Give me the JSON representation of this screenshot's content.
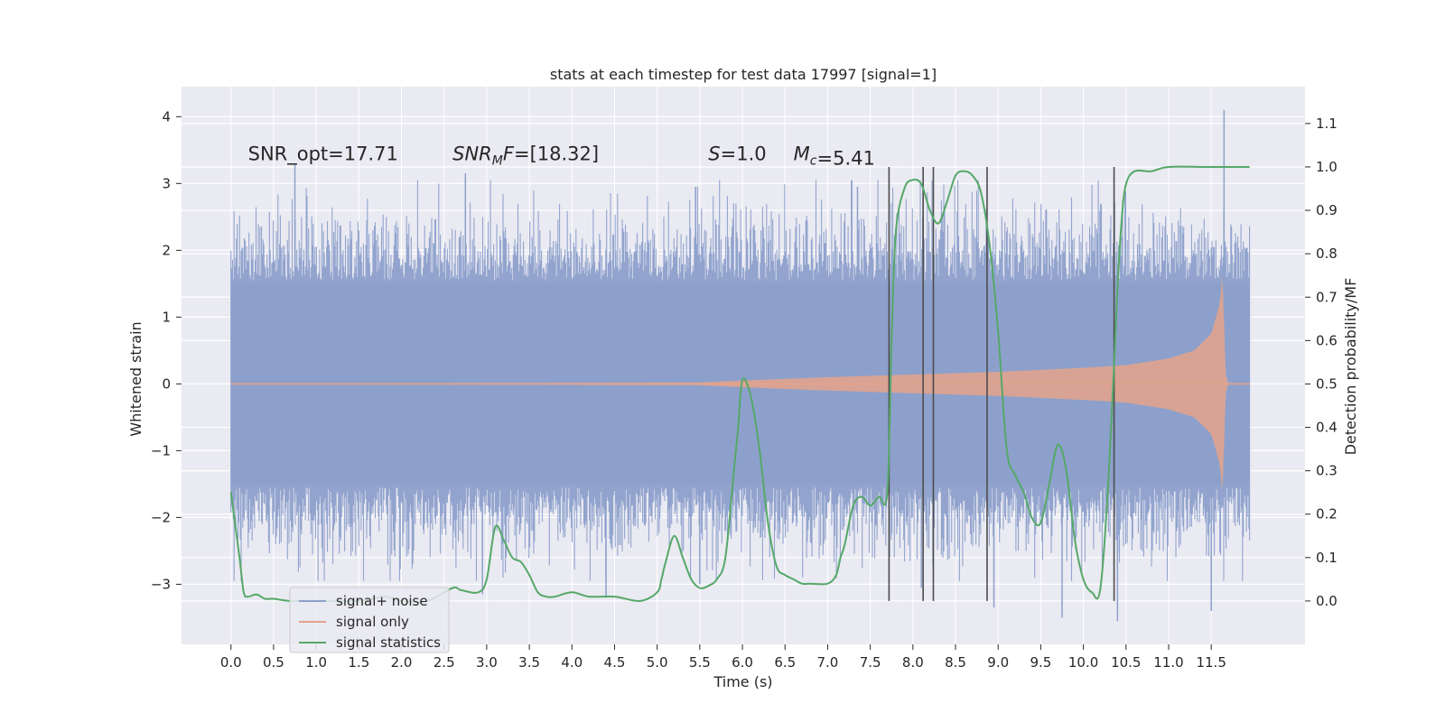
{
  "chart_data": {
    "type": "line",
    "title": "stats at each timestep for test data 17997 [signal=1]",
    "xlabel": "Time (s)",
    "ylabel_left": "Whitened strain",
    "ylabel_right": "Detection probability/MF",
    "xlim": [
      -0.58,
      12.6
    ],
    "ylim_left": [
      -3.9,
      4.45
    ],
    "ylim_right": [
      -0.1,
      1.185
    ],
    "x_ticks": [
      "0.0",
      "0.5",
      "1.0",
      "1.5",
      "2.0",
      "2.5",
      "3.0",
      "3.5",
      "4.0",
      "4.5",
      "5.0",
      "5.5",
      "6.0",
      "6.5",
      "7.0",
      "7.5",
      "8.0",
      "8.5",
      "9.0",
      "9.5",
      "10.0",
      "10.5",
      "11.0",
      "11.5"
    ],
    "y_ticks_left": [
      "4",
      "3",
      "2",
      "1",
      "0",
      "−1",
      "−2",
      "−3"
    ],
    "y_ticks_right": [
      "1.1",
      "1.0",
      "0.9",
      "0.8",
      "0.7",
      "0.6",
      "0.5",
      "0.4",
      "0.3",
      "0.2",
      "0.1",
      "0.0"
    ],
    "grid": true,
    "annotations": [
      {
        "id": "snr-opt",
        "text": "SNR_opt=17.71"
      },
      {
        "id": "snr-mf",
        "text": "SNR_MF=[18.32]"
      },
      {
        "id": "s-value",
        "text": "S=1.0"
      },
      {
        "id": "mc-value",
        "text": "M_c=5.41"
      }
    ],
    "legend": {
      "placement": "lower-left",
      "entries": [
        "signal+ noise",
        "signal only",
        "signal statistics"
      ]
    },
    "series": [
      {
        "name": "signal+ noise",
        "axis": "left",
        "kind": "noise-fill",
        "color": "#8da0cb",
        "x_range": [
          0.0,
          11.95
        ],
        "envelope": [
          -2.0,
          2.0
        ],
        "peaks": [
          {
            "x": 0.75,
            "y": 3.3
          },
          {
            "x": 2.75,
            "y": 3.15
          },
          {
            "x": 2.95,
            "y": -3.15
          },
          {
            "x": 4.4,
            "y": -3.2
          },
          {
            "x": 5.45,
            "y": 2.95
          },
          {
            "x": 5.5,
            "y": -3.0
          },
          {
            "x": 7.35,
            "y": 2.95
          },
          {
            "x": 8.1,
            "y": -3.05
          },
          {
            "x": 8.95,
            "y": -3.35
          },
          {
            "x": 9.75,
            "y": -3.5
          },
          {
            "x": 10.4,
            "y": -3.55
          },
          {
            "x": 11.65,
            "y": 4.1
          },
          {
            "x": 11.5,
            "y": -3.4
          }
        ]
      },
      {
        "name": "signal only",
        "axis": "left",
        "kind": "chirp",
        "color": "#e5a38b",
        "envelope_t": [
          0.0,
          5.5,
          6.0,
          7.0,
          8.0,
          9.0,
          10.0,
          10.5,
          11.0,
          11.3,
          11.5,
          11.6,
          11.64,
          11.66,
          11.7,
          11.95
        ],
        "envelope_a": [
          0.0,
          0.02,
          0.05,
          0.1,
          0.14,
          0.18,
          0.24,
          0.28,
          0.38,
          0.5,
          0.75,
          1.2,
          1.7,
          0.2,
          0.0,
          0.0
        ]
      },
      {
        "name": "signal statistics",
        "axis": "right",
        "color": "#55a868",
        "x": [
          0.0,
          0.1,
          0.15,
          0.2,
          0.3,
          0.4,
          0.5,
          0.7,
          1.0,
          1.5,
          1.8,
          2.0,
          2.3,
          2.6,
          2.7,
          2.9,
          3.0,
          3.1,
          3.2,
          3.3,
          3.4,
          3.5,
          3.6,
          3.7,
          3.8,
          4.0,
          4.2,
          4.5,
          4.8,
          5.0,
          5.05,
          5.1,
          5.2,
          5.3,
          5.4,
          5.5,
          5.6,
          5.7,
          5.8,
          5.9,
          5.95,
          6.0,
          6.1,
          6.2,
          6.3,
          6.4,
          6.5,
          6.6,
          6.7,
          6.8,
          7.0,
          7.1,
          7.15,
          7.2,
          7.3,
          7.4,
          7.5,
          7.6,
          7.7,
          7.75,
          7.8,
          7.9,
          8.0,
          8.1,
          8.2,
          8.3,
          8.4,
          8.5,
          8.6,
          8.7,
          8.8,
          8.9,
          9.0,
          9.1,
          9.2,
          9.3,
          9.4,
          9.5,
          9.6,
          9.7,
          9.8,
          9.9,
          10.0,
          10.1,
          10.2,
          10.3,
          10.4,
          10.45,
          10.5,
          10.6,
          10.8,
          11.0,
          11.5,
          11.95
        ],
        "y": [
          0.25,
          0.1,
          0.02,
          0.01,
          0.015,
          0.005,
          0.005,
          0.0,
          0.0,
          0.0,
          0.01,
          0.0,
          0.0,
          0.03,
          0.025,
          0.02,
          0.05,
          0.17,
          0.14,
          0.1,
          0.09,
          0.06,
          0.02,
          0.01,
          0.01,
          0.02,
          0.01,
          0.01,
          0.0,
          0.02,
          0.05,
          0.09,
          0.15,
          0.1,
          0.05,
          0.03,
          0.035,
          0.05,
          0.1,
          0.3,
          0.4,
          0.51,
          0.47,
          0.35,
          0.18,
          0.08,
          0.06,
          0.05,
          0.04,
          0.04,
          0.04,
          0.06,
          0.1,
          0.13,
          0.22,
          0.24,
          0.22,
          0.24,
          0.25,
          0.6,
          0.85,
          0.95,
          0.97,
          0.96,
          0.9,
          0.87,
          0.92,
          0.98,
          0.99,
          0.98,
          0.94,
          0.82,
          0.62,
          0.35,
          0.29,
          0.25,
          0.19,
          0.18,
          0.27,
          0.36,
          0.3,
          0.14,
          0.05,
          0.02,
          0.03,
          0.3,
          0.72,
          0.88,
          0.96,
          0.99,
          0.99,
          1.0,
          1.0,
          1.0
        ]
      }
    ],
    "vlines": {
      "color": "#4c4c4c",
      "x": [
        7.72,
        8.12,
        8.24,
        8.87,
        10.36
      ],
      "y_range": [
        0.0,
        1.0
      ],
      "axis": "right"
    }
  }
}
